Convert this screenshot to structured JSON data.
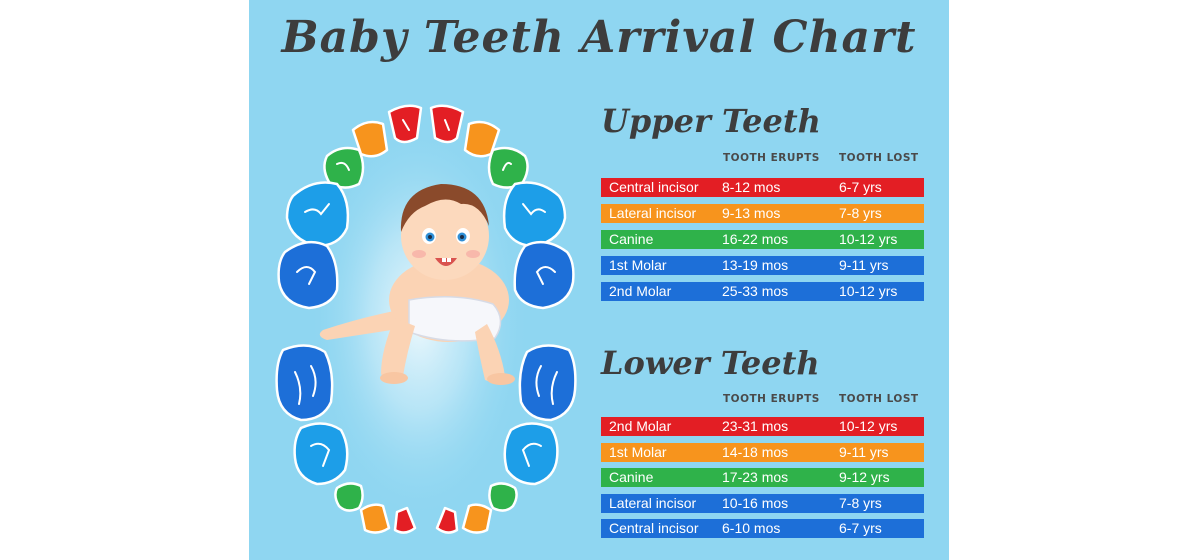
{
  "title": "Baby Teeth Arrival Chart",
  "colors": {
    "background": "#8fd6f1",
    "red": "#e31e24",
    "orange": "#f7941d",
    "green": "#2fb24a",
    "blue": "#1d6fd8"
  },
  "upper": {
    "heading": "Upper Teeth",
    "col_erupts": "TOOTH ERUPTS",
    "col_lost": "TOOTH LOST",
    "rows": [
      {
        "tooth": "Central incisor",
        "erupts": "8-12 mos",
        "lost": "6-7 yrs",
        "color": "#e31e24"
      },
      {
        "tooth": "Lateral incisor",
        "erupts": "9-13 mos",
        "lost": "7-8 yrs",
        "color": "#f7941d"
      },
      {
        "tooth": "Canine",
        "erupts": "16-22 mos",
        "lost": "10-12 yrs",
        "color": "#2fb24a"
      },
      {
        "tooth": "1st Molar",
        "erupts": "13-19 mos",
        "lost": "9-11 yrs",
        "color": "#1d6fd8"
      },
      {
        "tooth": "2nd Molar",
        "erupts": "25-33 mos",
        "lost": "10-12 yrs",
        "color": "#1d6fd8"
      }
    ]
  },
  "lower": {
    "heading": "Lower Teeth",
    "col_erupts": "TOOTH ERUPTS",
    "col_lost": "TOOTH LOST",
    "rows": [
      {
        "tooth": "2nd Molar",
        "erupts": "23-31 mos",
        "lost": "10-12 yrs",
        "color": "#e31e24"
      },
      {
        "tooth": "1st Molar",
        "erupts": "14-18 mos",
        "lost": "9-11 yrs",
        "color": "#f7941d"
      },
      {
        "tooth": "Canine",
        "erupts": "17-23 mos",
        "lost": "9-12 yrs",
        "color": "#2fb24a"
      },
      {
        "tooth": "Lateral incisor",
        "erupts": "10-16 mos",
        "lost": "7-8 yrs",
        "color": "#1d6fd8"
      },
      {
        "tooth": "Central incisor",
        "erupts": "6-10 mos",
        "lost": "6-7 yrs",
        "color": "#1d6fd8"
      }
    ]
  },
  "illustration": {
    "subject": "crawling-baby",
    "icon": "tooth-icon"
  }
}
